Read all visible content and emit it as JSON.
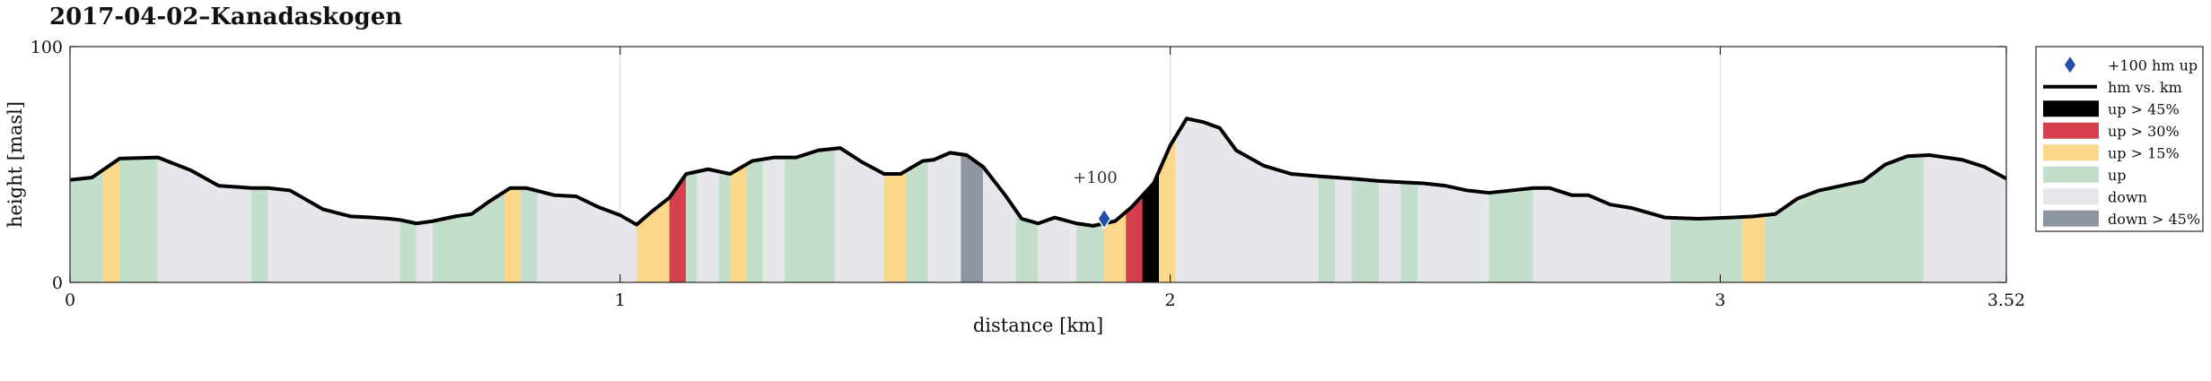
{
  "chart_data": {
    "type": "area",
    "title": "2017-04-02–Kanadaskogen",
    "xlabel": "distance [km]",
    "ylabel": "height [masl]",
    "xlim": [
      0,
      3.52
    ],
    "ylim": [
      0,
      100
    ],
    "xticks": [
      0,
      1,
      2,
      3,
      3.52
    ],
    "xtick_labels": [
      "0",
      "1",
      "2",
      "3",
      "3.52"
    ],
    "yticks": [
      0,
      100
    ],
    "ytick_labels": [
      "0",
      "100"
    ],
    "grid": true,
    "legend_position": "outside-right",
    "colors": {
      "line": "#000000",
      "marker": "#1f4fa8",
      "up45": "#000000",
      "up30": "#d6404e",
      "up15": "#fcd98a",
      "up": "#c3dfcc",
      "down": "#e6e7ea",
      "down45": "#8f96a3"
    },
    "legend": [
      {
        "key": "marker",
        "label": "+100 hm up"
      },
      {
        "key": "line",
        "label": "hm vs. km"
      },
      {
        "key": "up45",
        "label": "up > 45%"
      },
      {
        "key": "up30",
        "label": "up > 30%"
      },
      {
        "key": "up15",
        "label": "up > 15%"
      },
      {
        "key": "up",
        "label": "up"
      },
      {
        "key": "down",
        "label": "down"
      },
      {
        "key": "down45",
        "label": "down > 45%"
      }
    ],
    "annotations": [
      {
        "text": "+100",
        "x": 1.88,
        "y": 27
      }
    ],
    "profile": {
      "x": [
        0,
        0.04,
        0.09,
        0.16,
        0.22,
        0.27,
        0.33,
        0.36,
        0.4,
        0.46,
        0.51,
        0.55,
        0.58,
        0.6,
        0.63,
        0.66,
        0.7,
        0.73,
        0.76,
        0.8,
        0.83,
        0.88,
        0.92,
        0.96,
        1.0,
        1.03,
        1.06,
        1.09,
        1.12,
        1.16,
        1.2,
        1.24,
        1.28,
        1.32,
        1.36,
        1.4,
        1.44,
        1.48,
        1.51,
        1.55,
        1.57,
        1.6,
        1.63,
        1.66,
        1.7,
        1.73,
        1.76,
        1.79,
        1.83,
        1.86,
        1.88,
        1.9,
        1.93,
        1.97,
        2.0,
        2.03,
        2.06,
        2.09,
        2.12,
        2.17,
        2.22,
        2.27,
        2.33,
        2.38,
        2.42,
        2.46,
        2.5,
        2.54,
        2.58,
        2.62,
        2.66,
        2.69,
        2.73,
        2.76,
        2.8,
        2.84,
        2.9,
        2.96,
        3.02,
        3.06,
        3.1,
        3.14,
        3.18,
        3.22,
        3.26,
        3.3,
        3.34,
        3.38,
        3.44,
        3.48,
        3.52
      ],
      "y": [
        43.5,
        44.5,
        52.5,
        53,
        47.5,
        41,
        40,
        40,
        39,
        31,
        28,
        27.5,
        27,
        26.5,
        25,
        26,
        28,
        29,
        34,
        40,
        40,
        37,
        36.5,
        32,
        28.5,
        24.5,
        30.5,
        36,
        46,
        48,
        46,
        51.5,
        53,
        53,
        56,
        57,
        51,
        46,
        46,
        51.5,
        52,
        55,
        54,
        49,
        37,
        27,
        25,
        27.5,
        25,
        24,
        25,
        26,
        32,
        42,
        58,
        69.5,
        68,
        65.5,
        56,
        49.5,
        46,
        45,
        44,
        43,
        42.5,
        42,
        41,
        39,
        38,
        39,
        40,
        40,
        37,
        37,
        33,
        31.5,
        27.5,
        27,
        27.5,
        28,
        29,
        35.5,
        39,
        41,
        43,
        50,
        53.5,
        54,
        52,
        49,
        44
      ]
    },
    "segments": [
      {
        "x0": 0.0,
        "x1": 0.06,
        "cls": "up"
      },
      {
        "x0": 0.06,
        "x1": 0.09,
        "cls": "up15"
      },
      {
        "x0": 0.09,
        "x1": 0.16,
        "cls": "up"
      },
      {
        "x0": 0.16,
        "x1": 0.33,
        "cls": "down"
      },
      {
        "x0": 0.33,
        "x1": 0.36,
        "cls": "up"
      },
      {
        "x0": 0.36,
        "x1": 0.6,
        "cls": "down"
      },
      {
        "x0": 0.6,
        "x1": 0.63,
        "cls": "up"
      },
      {
        "x0": 0.63,
        "x1": 0.66,
        "cls": "down"
      },
      {
        "x0": 0.66,
        "x1": 0.79,
        "cls": "up"
      },
      {
        "x0": 0.79,
        "x1": 0.82,
        "cls": "up15"
      },
      {
        "x0": 0.82,
        "x1": 0.85,
        "cls": "up"
      },
      {
        "x0": 0.85,
        "x1": 1.03,
        "cls": "down"
      },
      {
        "x0": 1.03,
        "x1": 1.09,
        "cls": "up15"
      },
      {
        "x0": 1.09,
        "x1": 1.12,
        "cls": "up30"
      },
      {
        "x0": 1.12,
        "x1": 1.14,
        "cls": "up"
      },
      {
        "x0": 1.14,
        "x1": 1.18,
        "cls": "down"
      },
      {
        "x0": 1.18,
        "x1": 1.2,
        "cls": "up"
      },
      {
        "x0": 1.2,
        "x1": 1.23,
        "cls": "up15"
      },
      {
        "x0": 1.23,
        "x1": 1.26,
        "cls": "up"
      },
      {
        "x0": 1.26,
        "x1": 1.3,
        "cls": "down"
      },
      {
        "x0": 1.3,
        "x1": 1.39,
        "cls": "up"
      },
      {
        "x0": 1.39,
        "x1": 1.48,
        "cls": "down"
      },
      {
        "x0": 1.48,
        "x1": 1.52,
        "cls": "up15"
      },
      {
        "x0": 1.52,
        "x1": 1.56,
        "cls": "up"
      },
      {
        "x0": 1.56,
        "x1": 1.62,
        "cls": "down"
      },
      {
        "x0": 1.62,
        "x1": 1.66,
        "cls": "down45"
      },
      {
        "x0": 1.66,
        "x1": 1.72,
        "cls": "down"
      },
      {
        "x0": 1.72,
        "x1": 1.76,
        "cls": "up"
      },
      {
        "x0": 1.76,
        "x1": 1.83,
        "cls": "down"
      },
      {
        "x0": 1.83,
        "x1": 1.88,
        "cls": "up"
      },
      {
        "x0": 1.88,
        "x1": 1.92,
        "cls": "up15"
      },
      {
        "x0": 1.92,
        "x1": 1.95,
        "cls": "up30"
      },
      {
        "x0": 1.95,
        "x1": 1.98,
        "cls": "up45"
      },
      {
        "x0": 1.98,
        "x1": 2.01,
        "cls": "up15"
      },
      {
        "x0": 2.01,
        "x1": 2.27,
        "cls": "down"
      },
      {
        "x0": 2.27,
        "x1": 2.3,
        "cls": "up"
      },
      {
        "x0": 2.3,
        "x1": 2.33,
        "cls": "down"
      },
      {
        "x0": 2.33,
        "x1": 2.38,
        "cls": "up"
      },
      {
        "x0": 2.38,
        "x1": 2.42,
        "cls": "down"
      },
      {
        "x0": 2.42,
        "x1": 2.45,
        "cls": "up"
      },
      {
        "x0": 2.45,
        "x1": 2.58,
        "cls": "down"
      },
      {
        "x0": 2.58,
        "x1": 2.66,
        "cls": "up"
      },
      {
        "x0": 2.66,
        "x1": 2.91,
        "cls": "down"
      },
      {
        "x0": 2.91,
        "x1": 3.04,
        "cls": "up"
      },
      {
        "x0": 3.04,
        "x1": 3.08,
        "cls": "up15"
      },
      {
        "x0": 3.08,
        "x1": 3.37,
        "cls": "up"
      },
      {
        "x0": 3.37,
        "x1": 3.52,
        "cls": "down"
      }
    ]
  }
}
